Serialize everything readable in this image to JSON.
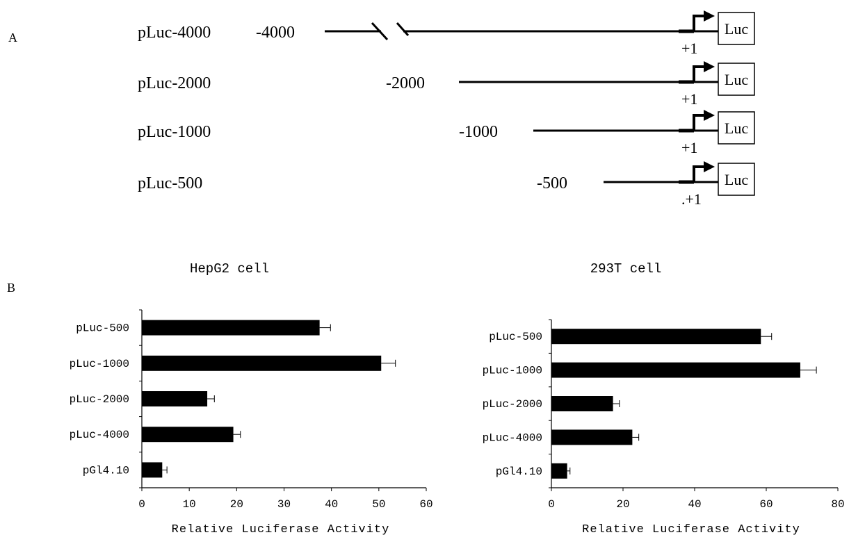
{
  "panel_a": {
    "letter": "A",
    "constructs": [
      {
        "name": "pLuc-4000",
        "start_label": "-4000",
        "tss_label": "+1",
        "reporter": "Luc"
      },
      {
        "name": "pLuc-2000",
        "start_label": "-2000",
        "tss_label": "+1",
        "reporter": "Luc"
      },
      {
        "name": "pLuc-1000",
        "start_label": "-1000",
        "tss_label": "+1",
        "reporter": "Luc"
      },
      {
        "name": "pLuc-500",
        "start_label": "-500",
        "tss_label": ".+1",
        "reporter": "Luc"
      }
    ]
  },
  "panel_b": {
    "letter": "B"
  },
  "chart_data": [
    {
      "type": "bar",
      "orientation": "horizontal",
      "title": "HepG2 cell",
      "xlabel": "Relative Luciferase Activity",
      "ylabel": "",
      "xlim": [
        0,
        60
      ],
      "xticks": [
        0,
        10,
        20,
        30,
        40,
        50,
        60
      ],
      "categories": [
        "pLuc-500",
        "pLuc-1000",
        "pLuc-2000",
        "pLuc-4000",
        "pGl4.10"
      ],
      "values": [
        37.5,
        50.5,
        13.8,
        19.3,
        4.3
      ],
      "errors": [
        2.3,
        3.0,
        1.5,
        1.5,
        1.0
      ],
      "bar_color": "#000000",
      "grid": false
    },
    {
      "type": "bar",
      "orientation": "horizontal",
      "title": "293T cell",
      "xlabel": "Relative Luciferase Activity",
      "ylabel": "",
      "xlim": [
        0,
        80
      ],
      "xticks": [
        0,
        20,
        40,
        60,
        80
      ],
      "categories": [
        "pLuc-500",
        "pLuc-1000",
        "pLuc-2000",
        "pLuc-4000",
        "pGl4.10"
      ],
      "values": [
        58.5,
        69.5,
        17.2,
        22.6,
        4.4
      ],
      "errors": [
        3.0,
        4.5,
        1.8,
        1.8,
        0.8
      ],
      "bar_color": "#000000",
      "grid": false
    }
  ]
}
